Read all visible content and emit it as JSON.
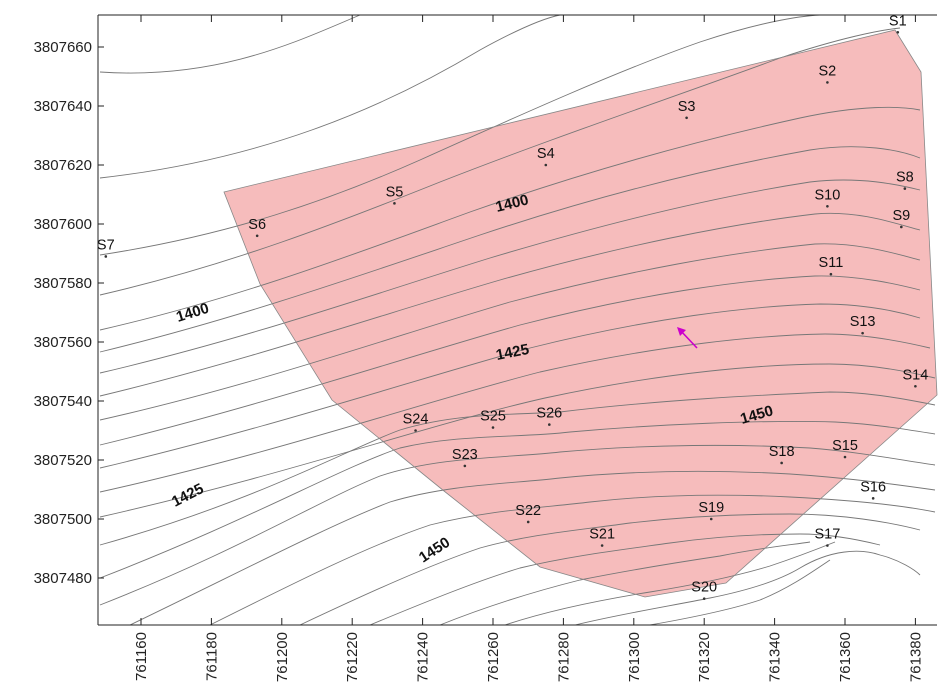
{
  "map": {
    "x_ticks": [
      "761160",
      "761180",
      "761200",
      "761220",
      "761240",
      "761260",
      "761280",
      "761300",
      "761320",
      "761340",
      "761360",
      "761380"
    ],
    "y_ticks": [
      "3807660",
      "3807640",
      "3807620",
      "3807600",
      "3807580",
      "3807560",
      "3807540",
      "3807520",
      "3807500",
      "3807480"
    ],
    "region_color": "#f6bcbc",
    "arrow_color": "#cc00cc",
    "contour_labels": [
      "1400",
      "1425",
      "1450",
      "1400",
      "1425",
      "1450"
    ],
    "sites": [
      {
        "name": "S1",
        "x": 761375,
        "y": 3807665
      },
      {
        "name": "S2",
        "x": 761355,
        "y": 3807648
      },
      {
        "name": "S3",
        "x": 761315,
        "y": 3807636
      },
      {
        "name": "S4",
        "x": 761275,
        "y": 3807620
      },
      {
        "name": "S5",
        "x": 761232,
        "y": 3807607
      },
      {
        "name": "S6",
        "x": 761193,
        "y": 3807596
      },
      {
        "name": "S7",
        "x": 761150,
        "y": 3807589
      },
      {
        "name": "S8",
        "x": 761377,
        "y": 3807612
      },
      {
        "name": "S9",
        "x": 761376,
        "y": 3807599
      },
      {
        "name": "S10",
        "x": 761355,
        "y": 3807606
      },
      {
        "name": "S11",
        "x": 761356,
        "y": 3807583
      },
      {
        "name": "S13",
        "x": 761365,
        "y": 3807563
      },
      {
        "name": "S14",
        "x": 761380,
        "y": 3807545
      },
      {
        "name": "S15",
        "x": 761360,
        "y": 3807521
      },
      {
        "name": "S16",
        "x": 761368,
        "y": 3807507
      },
      {
        "name": "S17",
        "x": 761355,
        "y": 3807491
      },
      {
        "name": "S18",
        "x": 761342,
        "y": 3807519
      },
      {
        "name": "S19",
        "x": 761322,
        "y": 3807500
      },
      {
        "name": "S20",
        "x": 761320,
        "y": 3807473
      },
      {
        "name": "S21",
        "x": 761291,
        "y": 3807491
      },
      {
        "name": "S22",
        "x": 761270,
        "y": 3807499
      },
      {
        "name": "S23",
        "x": 761252,
        "y": 3807518
      },
      {
        "name": "S24",
        "x": 761238,
        "y": 3807530
      },
      {
        "name": "S25",
        "x": 761260,
        "y": 3807531
      },
      {
        "name": "S26",
        "x": 761276,
        "y": 3807532
      }
    ]
  }
}
